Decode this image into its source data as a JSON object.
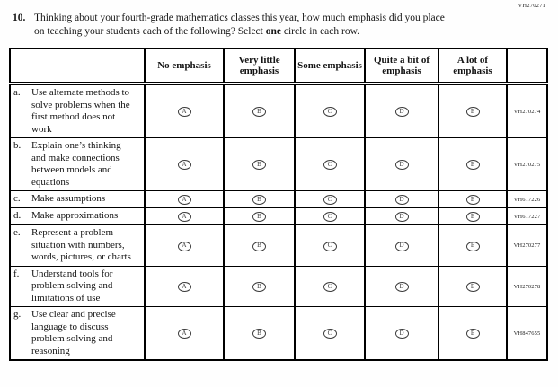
{
  "page": {
    "form_code": "VH270271",
    "background_color": "#fefefe",
    "text_color": "#141414",
    "border_color": "#000000",
    "oval_color": "#3c3c3c"
  },
  "question": {
    "number": "10.",
    "text_before_bold": "Thinking about your fourth-grade mathematics classes this year, how much emphasis did you place on teaching your students each of the following? Select ",
    "bold_word": "one",
    "text_after_bold": " circle in each row."
  },
  "table": {
    "column_headers": [
      "No emphasis",
      "Very little emphasis",
      "Some emphasis",
      "Quite a bit of emphasis",
      "A lot of emphasis"
    ],
    "option_letters": [
      "A",
      "B",
      "C",
      "D",
      "E"
    ],
    "rows": [
      {
        "letter": "a.",
        "text": "Use alternate methods to solve problems when the first method does not work",
        "code": "VH270274"
      },
      {
        "letter": "b.",
        "text": "Explain one’s thinking and make connections between models and equations",
        "code": "VH270275"
      },
      {
        "letter": "c.",
        "text": "Make assumptions",
        "code": "VH617226"
      },
      {
        "letter": "d.",
        "text": "Make approximations",
        "code": "VH617227"
      },
      {
        "letter": "e.",
        "text": "Represent a problem situation with numbers, words, pictures, or charts",
        "code": "VH270277"
      },
      {
        "letter": "f.",
        "text": "Understand tools for problem solving and limitations of use",
        "code": "VH270278"
      },
      {
        "letter": "g.",
        "text": "Use clear and precise language to discuss problem solving and reasoning",
        "code": "VH847655"
      }
    ]
  }
}
